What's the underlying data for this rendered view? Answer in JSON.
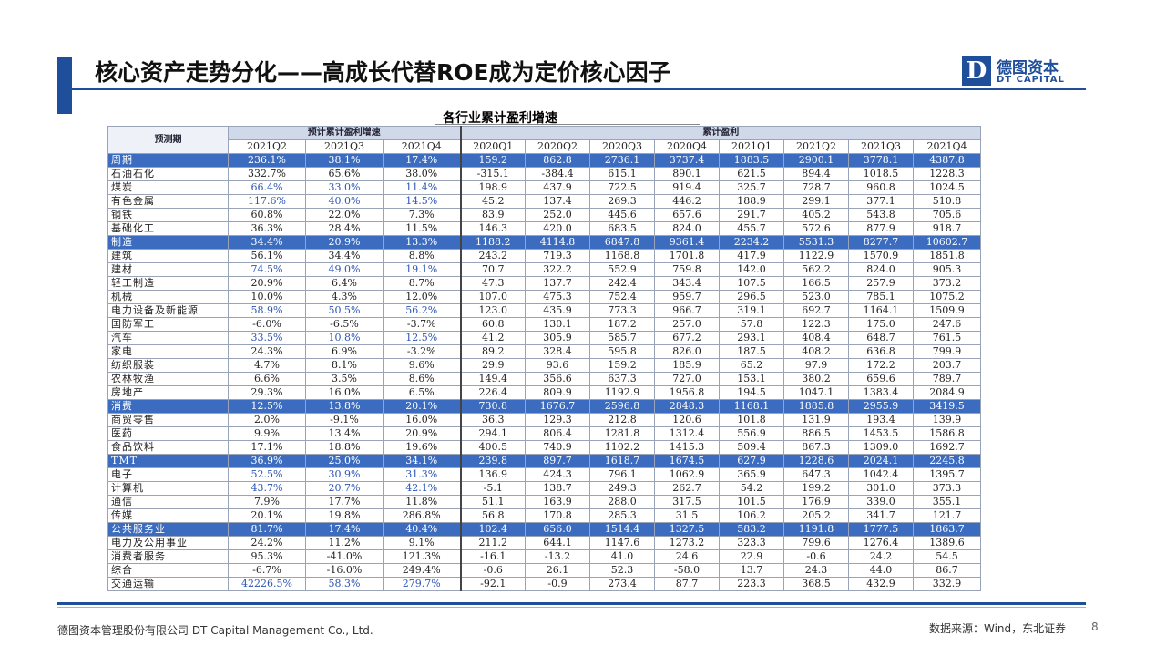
{
  "header": {
    "title": "核心资产走势分化——高成长代替ROE成为定价核心因子",
    "logo_mark": "D",
    "logo_cn": "德图资本",
    "logo_en": "DT CAPITAL"
  },
  "table_title": "各行业累计盈利增速",
  "table": {
    "corner_label": "预测期",
    "group1_label": "预计累计盈利增速",
    "group2_label": "累计盈利",
    "columns": [
      "2021Q2",
      "2021Q3",
      "2021Q4",
      "2020Q1",
      "2020Q2",
      "2020Q3",
      "2020Q4",
      "2021Q1",
      "2021Q2",
      "2021Q3",
      "2021Q4"
    ],
    "rows": [
      {
        "name": "周期",
        "group": true,
        "values": [
          "236.1%",
          "38.1%",
          "17.4%",
          "159.2",
          "862.8",
          "2736.1",
          "3737.4",
          "1883.5",
          "2900.1",
          "3778.1",
          "4387.8"
        ]
      },
      {
        "name": "石油石化",
        "values": [
          "332.7%",
          "65.6%",
          "38.0%",
          "-315.1",
          "-384.4",
          "615.1",
          "890.1",
          "621.5",
          "894.4",
          "1018.5",
          "1228.3"
        ]
      },
      {
        "name": "煤炭",
        "blue": true,
        "values": [
          "66.4%",
          "33.0%",
          "11.4%",
          "198.9",
          "437.9",
          "722.5",
          "919.4",
          "325.7",
          "728.7",
          "960.8",
          "1024.5"
        ]
      },
      {
        "name": "有色金属",
        "blue": true,
        "values": [
          "117.6%",
          "40.0%",
          "14.5%",
          "45.2",
          "137.4",
          "269.3",
          "446.2",
          "188.9",
          "299.1",
          "377.1",
          "510.8"
        ]
      },
      {
        "name": "钢铁",
        "values": [
          "60.8%",
          "22.0%",
          "7.3%",
          "83.9",
          "252.0",
          "445.6",
          "657.6",
          "291.7",
          "405.2",
          "543.8",
          "705.6"
        ]
      },
      {
        "name": "基础化工",
        "values": [
          "36.3%",
          "28.4%",
          "11.5%",
          "146.3",
          "420.0",
          "683.5",
          "824.0",
          "455.7",
          "572.6",
          "877.9",
          "918.7"
        ]
      },
      {
        "name": "制造",
        "group": true,
        "values": [
          "34.4%",
          "20.9%",
          "13.3%",
          "1188.2",
          "4114.8",
          "6847.8",
          "9361.4",
          "2234.2",
          "5531.3",
          "8277.7",
          "10602.7"
        ]
      },
      {
        "name": "建筑",
        "values": [
          "56.1%",
          "34.4%",
          "8.8%",
          "243.2",
          "719.3",
          "1168.8",
          "1701.8",
          "417.9",
          "1122.9",
          "1570.9",
          "1851.8"
        ]
      },
      {
        "name": "建材",
        "blue": true,
        "values": [
          "74.5%",
          "49.0%",
          "19.1%",
          "70.7",
          "322.2",
          "552.9",
          "759.8",
          "142.0",
          "562.2",
          "824.0",
          "905.3"
        ]
      },
      {
        "name": "轻工制造",
        "values": [
          "20.9%",
          "6.4%",
          "8.7%",
          "47.3",
          "137.7",
          "242.4",
          "343.4",
          "107.5",
          "166.5",
          "257.9",
          "373.2"
        ]
      },
      {
        "name": "机械",
        "values": [
          "10.0%",
          "4.3%",
          "12.0%",
          "107.0",
          "475.3",
          "752.4",
          "959.7",
          "296.5",
          "523.0",
          "785.1",
          "1075.2"
        ]
      },
      {
        "name": "电力设备及新能源",
        "blue": true,
        "values": [
          "58.9%",
          "50.5%",
          "56.2%",
          "123.0",
          "435.9",
          "773.3",
          "966.7",
          "319.1",
          "692.7",
          "1164.1",
          "1509.9"
        ]
      },
      {
        "name": "国防军工",
        "values": [
          "-6.0%",
          "-6.5%",
          "-3.7%",
          "60.8",
          "130.1",
          "187.2",
          "257.0",
          "57.8",
          "122.3",
          "175.0",
          "247.6"
        ]
      },
      {
        "name": "汽车",
        "blue": true,
        "values": [
          "33.5%",
          "10.8%",
          "12.5%",
          "41.2",
          "305.9",
          "585.7",
          "677.2",
          "293.1",
          "408.4",
          "648.7",
          "761.5"
        ]
      },
      {
        "name": "家电",
        "values": [
          "24.3%",
          "6.9%",
          "-3.2%",
          "89.2",
          "328.4",
          "595.8",
          "826.0",
          "187.5",
          "408.2",
          "636.8",
          "799.9"
        ]
      },
      {
        "name": "纺织服装",
        "values": [
          "4.7%",
          "8.1%",
          "9.6%",
          "29.9",
          "93.6",
          "159.2",
          "185.9",
          "65.2",
          "97.9",
          "172.2",
          "203.7"
        ]
      },
      {
        "name": "农林牧渔",
        "values": [
          "6.6%",
          "3.5%",
          "8.6%",
          "149.4",
          "356.6",
          "637.3",
          "727.0",
          "153.1",
          "380.2",
          "659.6",
          "789.7"
        ]
      },
      {
        "name": "房地产",
        "values": [
          "29.3%",
          "16.0%",
          "6.5%",
          "226.4",
          "809.9",
          "1192.9",
          "1956.8",
          "194.5",
          "1047.1",
          "1383.4",
          "2084.9"
        ]
      },
      {
        "name": "消费",
        "group": true,
        "values": [
          "12.5%",
          "13.8%",
          "20.1%",
          "730.8",
          "1676.7",
          "2596.8",
          "2848.3",
          "1168.1",
          "1885.8",
          "2955.9",
          "3419.5"
        ]
      },
      {
        "name": "商贸零售",
        "values": [
          "2.0%",
          "-9.1%",
          "16.0%",
          "36.3",
          "129.3",
          "212.8",
          "120.6",
          "101.8",
          "131.9",
          "193.4",
          "139.9"
        ]
      },
      {
        "name": "医药",
        "values": [
          "9.9%",
          "13.4%",
          "20.9%",
          "294.1",
          "806.4",
          "1281.8",
          "1312.4",
          "556.9",
          "886.5",
          "1453.5",
          "1586.8"
        ]
      },
      {
        "name": "食品饮料",
        "values": [
          "17.1%",
          "18.8%",
          "19.6%",
          "400.5",
          "740.9",
          "1102.2",
          "1415.3",
          "509.4",
          "867.3",
          "1309.0",
          "1692.7"
        ]
      },
      {
        "name": "TMT",
        "group": true,
        "values": [
          "36.9%",
          "25.0%",
          "34.1%",
          "239.8",
          "897.7",
          "1618.7",
          "1674.5",
          "627.9",
          "1228.6",
          "2024.1",
          "2245.8"
        ]
      },
      {
        "name": "电子",
        "blue": true,
        "values": [
          "52.5%",
          "30.9%",
          "31.3%",
          "136.9",
          "424.3",
          "796.1",
          "1062.9",
          "365.9",
          "647.3",
          "1042.4",
          "1395.7"
        ]
      },
      {
        "name": "计算机",
        "blue": true,
        "values": [
          "43.7%",
          "20.7%",
          "42.1%",
          "-5.1",
          "138.7",
          "249.3",
          "262.7",
          "54.2",
          "199.2",
          "301.0",
          "373.3"
        ]
      },
      {
        "name": "通信",
        "values": [
          "7.9%",
          "17.7%",
          "11.8%",
          "51.1",
          "163.9",
          "288.0",
          "317.5",
          "101.5",
          "176.9",
          "339.0",
          "355.1"
        ]
      },
      {
        "name": "传媒",
        "values": [
          "20.1%",
          "19.8%",
          "286.8%",
          "56.8",
          "170.8",
          "285.3",
          "31.5",
          "106.2",
          "205.2",
          "341.7",
          "121.7"
        ]
      },
      {
        "name": "公共服务业",
        "group": true,
        "values": [
          "81.7%",
          "17.4%",
          "40.4%",
          "102.4",
          "656.0",
          "1514.4",
          "1327.5",
          "583.2",
          "1191.8",
          "1777.5",
          "1863.7"
        ]
      },
      {
        "name": "电力及公用事业",
        "values": [
          "24.2%",
          "11.2%",
          "9.1%",
          "211.2",
          "644.1",
          "1147.6",
          "1273.2",
          "323.3",
          "799.6",
          "1276.4",
          "1389.6"
        ]
      },
      {
        "name": "消费者服务",
        "values": [
          "95.3%",
          "-41.0%",
          "121.3%",
          "-16.1",
          "-13.2",
          "41.0",
          "24.6",
          "22.9",
          "-0.6",
          "24.2",
          "54.5"
        ]
      },
      {
        "name": "综合",
        "values": [
          "-6.7%",
          "-16.0%",
          "249.4%",
          "-0.6",
          "26.1",
          "52.3",
          "-58.0",
          "13.7",
          "24.3",
          "44.0",
          "86.7"
        ]
      },
      {
        "name": "交通运输",
        "blue": true,
        "values": [
          "42226.5%",
          "58.3%",
          "279.7%",
          "-92.1",
          "-0.9",
          "273.4",
          "87.7",
          "223.3",
          "368.5",
          "432.9",
          "332.9"
        ]
      }
    ]
  },
  "footer": {
    "company": "德图资本管理股份有限公司  DT Capital Management Co., Ltd.",
    "source": "数据来源：Wind，东北证券",
    "page": "8"
  },
  "colors": {
    "brand_blue": "#1f4e9a",
    "group_row": "#3b6cc0",
    "highlight_text": "#2c55b5"
  }
}
